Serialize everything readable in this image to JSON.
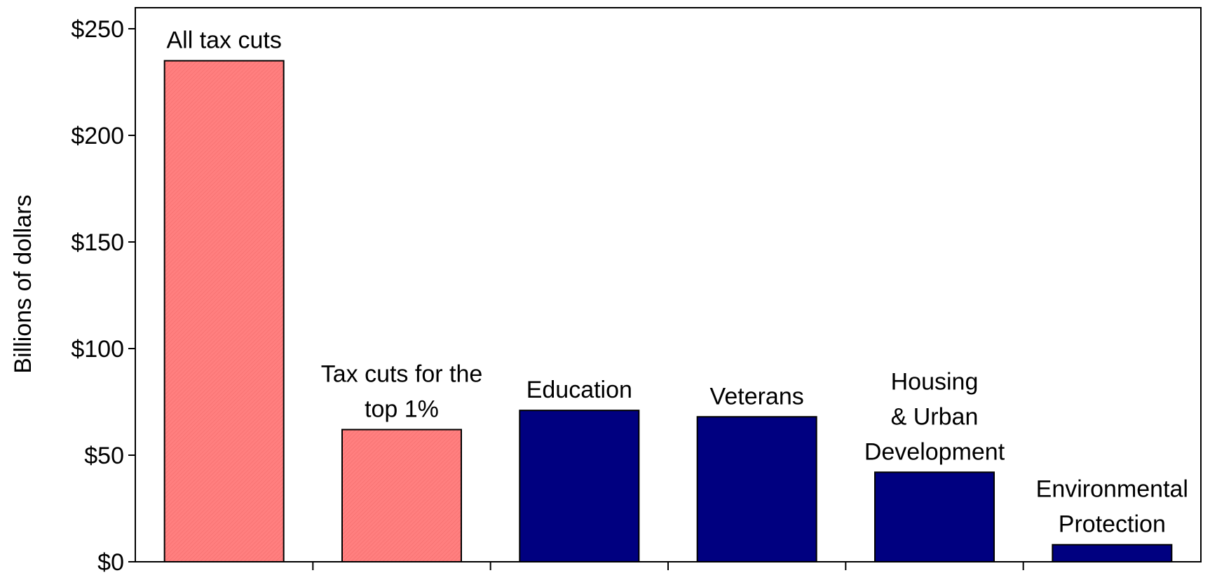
{
  "chart_data": {
    "type": "bar",
    "title": "",
    "xlabel": "",
    "ylabel": "Billions of dollars",
    "ylim": [
      0,
      260
    ],
    "y_ticks": [
      0,
      50,
      100,
      150,
      200,
      250
    ],
    "y_tick_labels": [
      "$0",
      "$50",
      "$100",
      "$150",
      "$200",
      "$250"
    ],
    "grid": false,
    "legend": "none",
    "categories": [
      [
        "All tax cuts"
      ],
      [
        "Tax cuts for the",
        "top 1%"
      ],
      [
        "Education"
      ],
      [
        "Veterans"
      ],
      [
        "Housing",
        "& Urban",
        "Development"
      ],
      [
        "Environmental",
        "Protection"
      ]
    ],
    "values": [
      235,
      62,
      71,
      68,
      42,
      8
    ],
    "bar_colors": [
      "#FF7F7F",
      "#FF7F7F",
      "#000080",
      "#000080",
      "#000080",
      "#000080"
    ]
  }
}
